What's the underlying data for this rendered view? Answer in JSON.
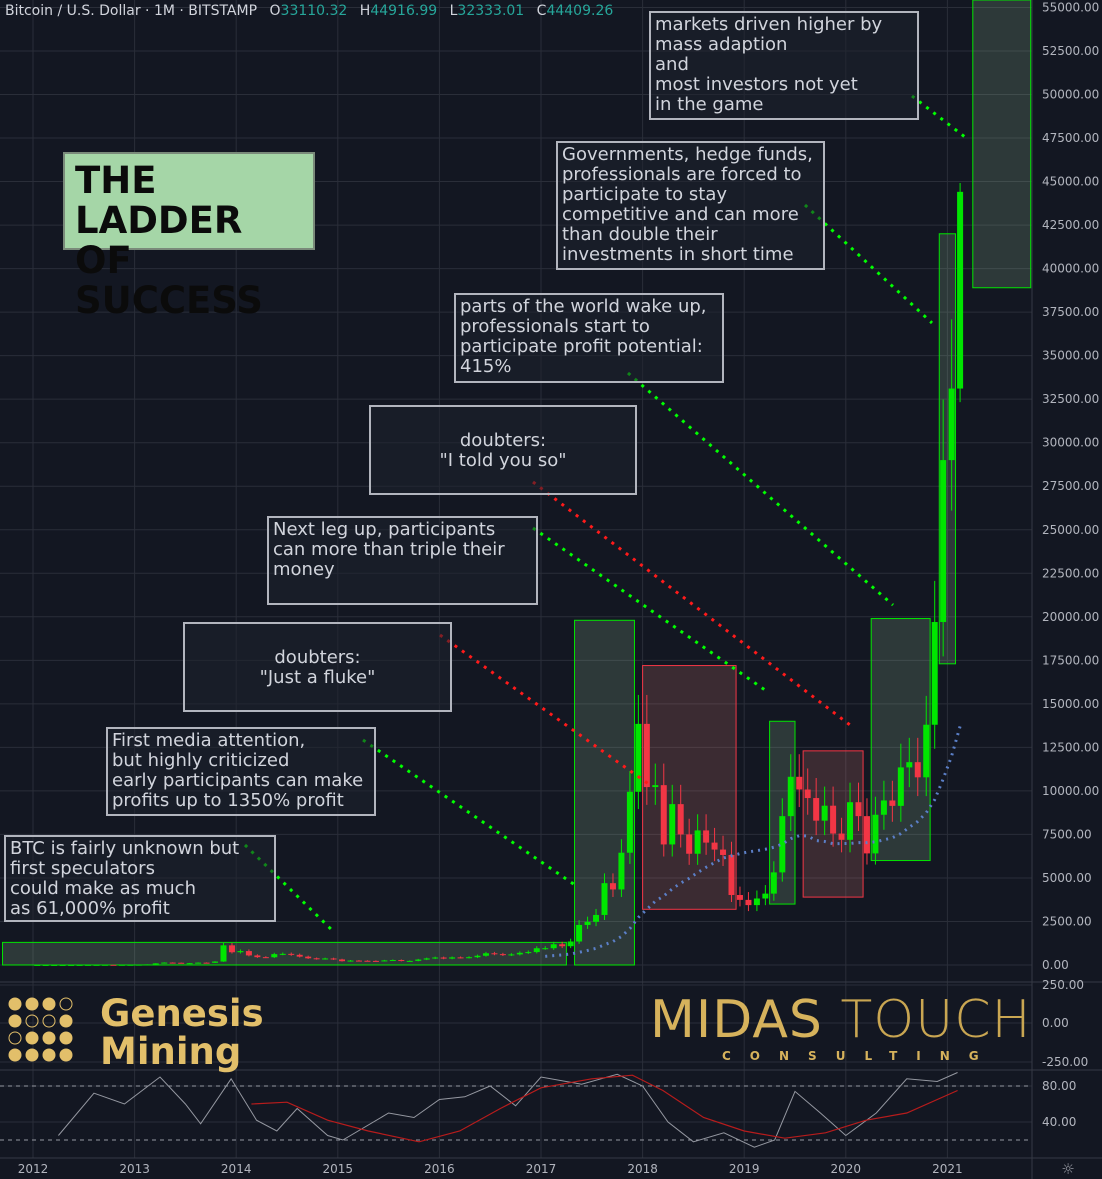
{
  "header": {
    "symbol": "Bitcoin / U.S. Dollar",
    "interval": "1M",
    "exchange": "BITSTAMP",
    "open_label": "O",
    "open": "33110.32",
    "high_label": "H",
    "high": "44916.99",
    "low_label": "L",
    "low": "32333.01",
    "close_label": "C",
    "close": "44409.26"
  },
  "title": "THE LADDER\nOF SUCCESS",
  "annotations": [
    {
      "id": "a1",
      "text": "BTC is fairly unknown but\nfirst speculators\ncould make as much\nas 61,000% profit"
    },
    {
      "id": "a2",
      "text": "First media attention,\nbut highly criticized\nearly participants can make\nprofits up to 1350% profit"
    },
    {
      "id": "a3",
      "text": "doubters:\n\"Just a fluke\""
    },
    {
      "id": "a4",
      "text": "Next leg up, participants\ncan more than triple their\nmoney"
    },
    {
      "id": "a5",
      "text": "doubters:\n\"I told you so\""
    },
    {
      "id": "a6",
      "text": "parts of the world wake up,\nprofessionals start to\nparticipate profit potential:\n415%"
    },
    {
      "id": "a7",
      "text": "Governments, hedge funds,\nprofessionals are forced to\nparticipate to stay\ncompetitive and can more\nthan double their\ninvestments in short time"
    },
    {
      "id": "a8",
      "text": "markets driven higher by\nmass adaption\nand\nmost investors not yet\nin the game"
    }
  ],
  "logos": {
    "genesis": "Genesis\nMining",
    "midas_a": "MIDAS ",
    "midas_b": "TOUCH",
    "consulting": "CONSULTING"
  },
  "colors": {
    "bg": "#131722",
    "up": "#00e600",
    "down": "#f23645",
    "grid": "#2a2e39",
    "text": "#d1d4dc",
    "green_zone": "#a5d6a7",
    "red_zone": "#f28b82",
    "osc_main": "#9598a1",
    "osc_signal": "#b71c1c"
  },
  "chart_data": {
    "type": "candlestick",
    "ylim": [
      0,
      55000
    ],
    "xlim": [
      2011.7,
      2021.85
    ],
    "y_ticks": [
      "55000.00",
      "52500.00",
      "50000.00",
      "47500.00",
      "45000.00",
      "42500.00",
      "40000.00",
      "37500.00",
      "35000.00",
      "32500.00",
      "30000.00",
      "27500.00",
      "25000.00",
      "22500.00",
      "20000.00",
      "17500.00",
      "15000.00",
      "12500.00",
      "10000.00",
      "7500.00",
      "5000.00",
      "2500.00",
      "0.00"
    ],
    "x_ticks": [
      "2012",
      "2013",
      "2014",
      "2015",
      "2016",
      "2017",
      "2018",
      "2019",
      "2020",
      "2021"
    ],
    "monthly_close": {
      "start": "2012-01",
      "values": [
        5,
        5,
        5,
        5,
        5,
        7,
        9,
        10,
        12,
        11,
        12,
        13,
        20,
        33,
        93,
        139,
        129,
        97,
        106,
        135,
        127,
        198,
        1130,
        732,
        800,
        550,
        450,
        445,
        625,
        640,
        585,
        480,
        385,
        340,
        375,
        320,
        218,
        254,
        244,
        236,
        230,
        263,
        285,
        230,
        236,
        313,
        378,
        430,
        368,
        437,
        416,
        448,
        531,
        673,
        624,
        575,
        608,
        700,
        742,
        963,
        965,
        1190,
        1080,
        1350,
        2300,
        2480,
        2875,
        4700,
        4340,
        6450,
        9950,
        13850,
        10220,
        10330,
        6925,
        9240,
        7500,
        6390,
        7730,
        7030,
        6630,
        6320,
        4020,
        3740,
        3440,
        3820,
        4100,
        5320,
        8550,
        10810,
        10080,
        9590,
        8290,
        9150,
        7550,
        7190,
        9350,
        8550,
        6410,
        8630,
        9450,
        9140,
        11350,
        11650,
        10780,
        13800,
        19700,
        29000,
        33110,
        44409.26
      ]
    },
    "last_candle": {
      "open": 33110.32,
      "high": 44916.99,
      "low": 32333.01,
      "close": 44409.26
    },
    "zones": [
      {
        "kind": "green",
        "t0": 2011.7,
        "t1": 2017.25,
        "p0": 0,
        "p1": 1300
      },
      {
        "kind": "green",
        "t0": 2017.33,
        "t1": 2017.92,
        "p0": 0,
        "p1": 19800
      },
      {
        "kind": "red",
        "t0": 2018.0,
        "t1": 2018.92,
        "p0": 3200,
        "p1": 17200
      },
      {
        "kind": "green",
        "t0": 2019.25,
        "t1": 2019.5,
        "p0": 3500,
        "p1": 14000
      },
      {
        "kind": "red",
        "t0": 2019.58,
        "t1": 2020.17,
        "p0": 3900,
        "p1": 12300
      },
      {
        "kind": "green",
        "t0": 2020.25,
        "t1": 2020.83,
        "p0": 6000,
        "p1": 19900
      },
      {
        "kind": "green",
        "t0": 2020.92,
        "t1": 2021.08,
        "p0": 17300,
        "p1": 42000
      },
      {
        "kind": "green",
        "t0": 2021.25,
        "t1": 2021.82,
        "p0": 38900,
        "p1": 60000
      }
    ],
    "macd_pane": {
      "y_ticks": [
        "250.00",
        "0.00",
        "-250.00"
      ]
    },
    "oscillator": {
      "y_ticks": [
        "80.00",
        "40.00"
      ],
      "levels": [
        80,
        20
      ],
      "main": [
        [
          2012.25,
          25
        ],
        [
          2012.6,
          72
        ],
        [
          2012.9,
          60
        ],
        [
          2013.25,
          90
        ],
        [
          2013.5,
          60
        ],
        [
          2013.65,
          38
        ],
        [
          2013.95,
          88
        ],
        [
          2014.2,
          42
        ],
        [
          2014.4,
          30
        ],
        [
          2014.6,
          55
        ],
        [
          2014.9,
          25
        ],
        [
          2015.05,
          20
        ],
        [
          2015.5,
          50
        ],
        [
          2015.75,
          45
        ],
        [
          2016.0,
          65
        ],
        [
          2016.25,
          68
        ],
        [
          2016.5,
          80
        ],
        [
          2016.75,
          58
        ],
        [
          2017.0,
          90
        ],
        [
          2017.4,
          82
        ],
        [
          2017.75,
          93
        ],
        [
          2018.0,
          80
        ],
        [
          2018.25,
          40
        ],
        [
          2018.5,
          18
        ],
        [
          2018.8,
          28
        ],
        [
          2019.1,
          12
        ],
        [
          2019.3,
          20
        ],
        [
          2019.5,
          74
        ],
        [
          2019.75,
          50
        ],
        [
          2020.0,
          25
        ],
        [
          2020.3,
          50
        ],
        [
          2020.6,
          88
        ],
        [
          2020.9,
          85
        ],
        [
          2021.1,
          95
        ]
      ],
      "signal": [
        [
          2014.15,
          60
        ],
        [
          2014.5,
          62
        ],
        [
          2014.9,
          42
        ],
        [
          2015.3,
          30
        ],
        [
          2015.8,
          18
        ],
        [
          2016.2,
          30
        ],
        [
          2016.6,
          55
        ],
        [
          2017.0,
          78
        ],
        [
          2017.5,
          88
        ],
        [
          2017.9,
          92
        ],
        [
          2018.2,
          75
        ],
        [
          2018.6,
          45
        ],
        [
          2019.0,
          30
        ],
        [
          2019.4,
          22
        ],
        [
          2019.8,
          28
        ],
        [
          2020.2,
          42
        ],
        [
          2020.6,
          50
        ],
        [
          2021.1,
          75
        ]
      ]
    }
  }
}
